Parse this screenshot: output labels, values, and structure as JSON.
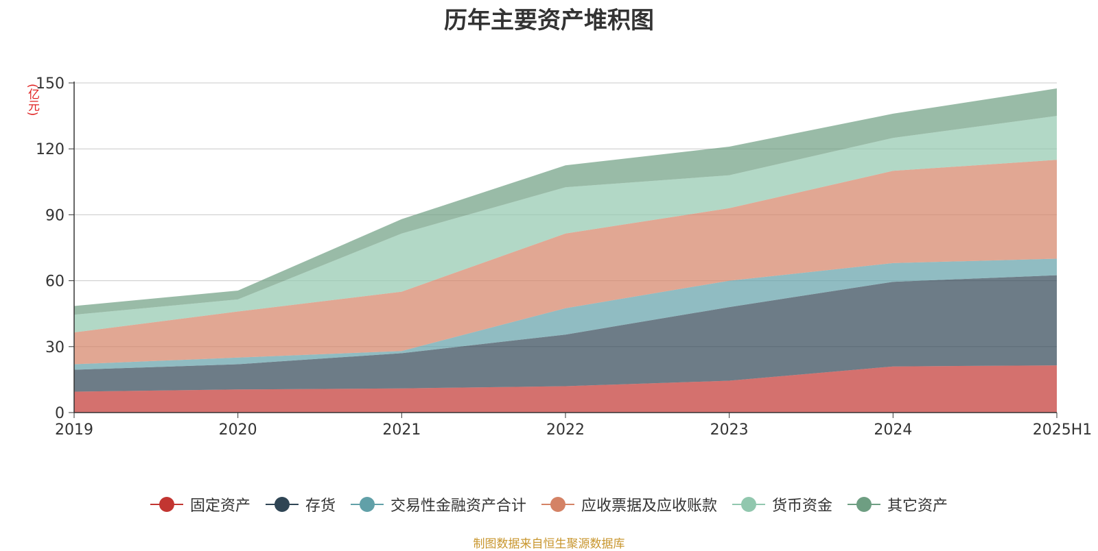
{
  "title": "历年主要资产堆积图",
  "unit_label": "(亿元)",
  "source": "制图数据来自恒生聚源数据库",
  "chart_data": {
    "type": "area",
    "stacked": true,
    "categories": [
      "2019",
      "2020",
      "2021",
      "2022",
      "2023",
      "2024",
      "2025H1"
    ],
    "ylim": [
      0,
      150
    ],
    "yticks": [
      "0",
      "30",
      "60",
      "90",
      "120",
      "150"
    ],
    "grid": true,
    "legend_position": "bottom",
    "series": [
      {
        "name": "固定资产",
        "color": "#c23531",
        "values": [
          9.5,
          10.5,
          11,
          12,
          14.5,
          21,
          21.5
        ]
      },
      {
        "name": "存货",
        "color": "#2f4554",
        "values": [
          10,
          11.5,
          16,
          23.5,
          33.5,
          38.5,
          41
        ]
      },
      {
        "name": "交易性金融资产合计",
        "color": "#61a0a8",
        "values": [
          2.5,
          3,
          1,
          12,
          12,
          8.5,
          7.5
        ]
      },
      {
        "name": "应收票据及应收账款",
        "color": "#d48265",
        "values": [
          14.5,
          21,
          27,
          34,
          33,
          42,
          45
        ]
      },
      {
        "name": "货币资金",
        "color": "#91c7ae",
        "values": [
          8,
          5.5,
          26.5,
          21,
          15,
          15,
          20
        ]
      },
      {
        "name": "其它资产",
        "color": "#6e9e82",
        "values": [
          4,
          4,
          6.5,
          10,
          13,
          11,
          12.5
        ]
      }
    ]
  }
}
